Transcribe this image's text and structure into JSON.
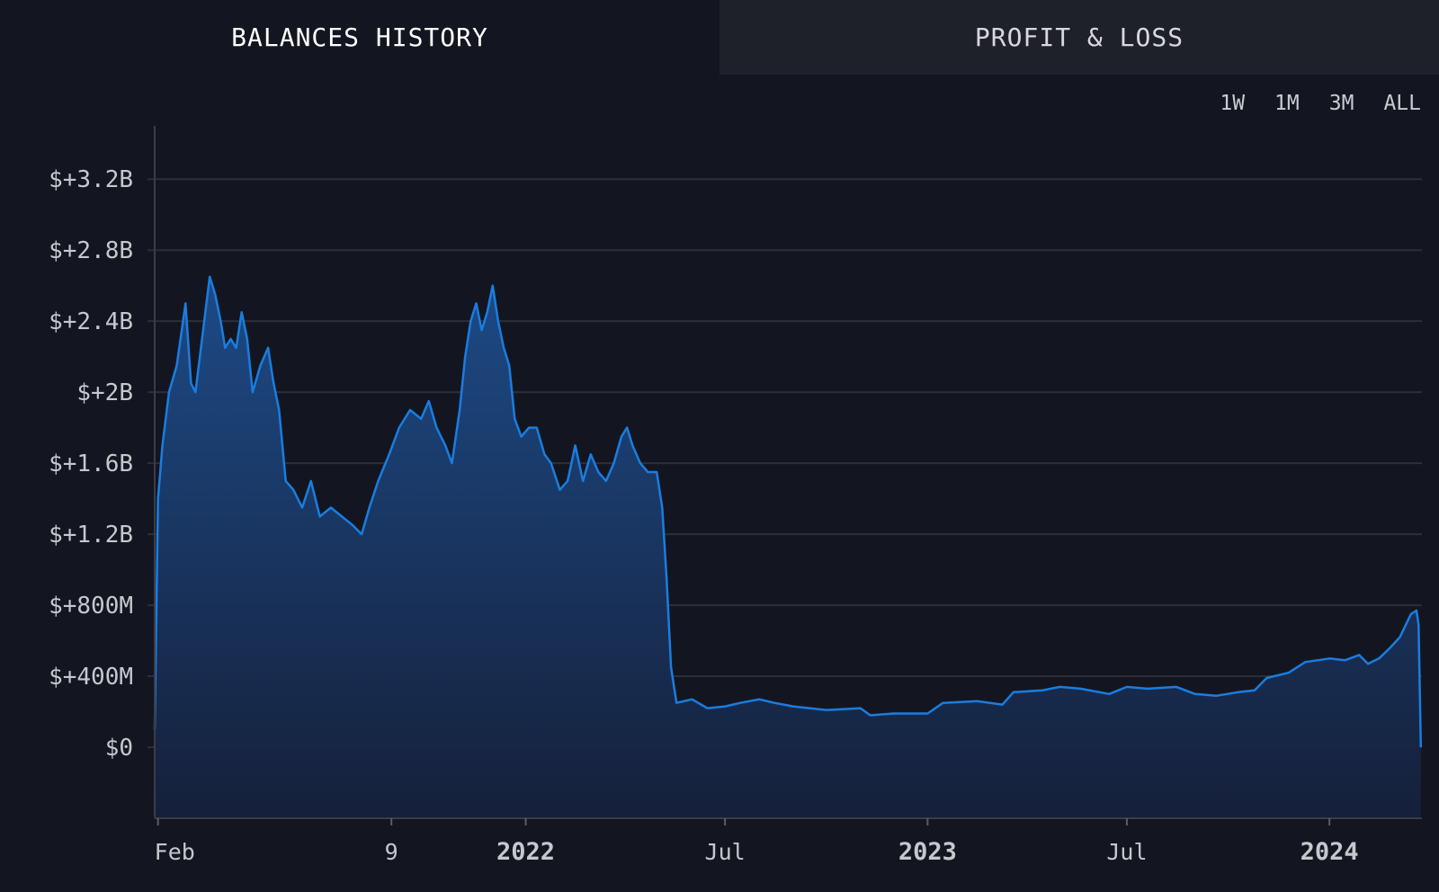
{
  "tabs": [
    {
      "label": "BALANCES HISTORY",
      "active": true
    },
    {
      "label": "PROFIT & LOSS",
      "active": false
    }
  ],
  "ranges": [
    "1W",
    "1M",
    "3M",
    "ALL"
  ],
  "colors": {
    "background": "#131620",
    "line": "#1a7de0",
    "fill_top": "#1d4a86",
    "fill_bottom": "#15203a",
    "grid": "#2c2f38"
  },
  "chart_data": {
    "type": "area",
    "title": "",
    "xlabel": "",
    "ylabel": "",
    "ylim": [
      -400000000,
      3500000000
    ],
    "yticks": [
      {
        "value": 0,
        "label": "$0"
      },
      {
        "value": 400000000,
        "label": "$+400M"
      },
      {
        "value": 800000000,
        "label": "$+800M"
      },
      {
        "value": 1200000000,
        "label": "$+1.2B"
      },
      {
        "value": 1600000000,
        "label": "$+1.6B"
      },
      {
        "value": 2000000000,
        "label": "$+2B"
      },
      {
        "value": 2400000000,
        "label": "$+2.4B"
      },
      {
        "value": 2800000000,
        "label": "$+2.8B"
      },
      {
        "value": 3200000000,
        "label": "$+3.2B"
      }
    ],
    "xlim": [
      "2021-01-29",
      "2024-03-25"
    ],
    "xticks": [
      {
        "date": "2021-02-01",
        "label": "Feb",
        "bold": false
      },
      {
        "date": "2021-09-01",
        "label": "9",
        "bold": false
      },
      {
        "date": "2022-01-01",
        "label": "2022",
        "bold": true
      },
      {
        "date": "2022-07-01",
        "label": "Jul",
        "bold": false
      },
      {
        "date": "2023-01-01",
        "label": "2023",
        "bold": true
      },
      {
        "date": "2023-07-01",
        "label": "Jul",
        "bold": false
      },
      {
        "date": "2024-01-01",
        "label": "2024",
        "bold": true
      }
    ],
    "grid": true,
    "legend": "none",
    "series": [
      {
        "points": [
          [
            "2021-01-29",
            100000000
          ],
          [
            "2021-02-01",
            1400000000
          ],
          [
            "2021-02-05",
            1700000000
          ],
          [
            "2021-02-11",
            2000000000
          ],
          [
            "2021-02-18",
            2150000000
          ],
          [
            "2021-02-26",
            2500000000
          ],
          [
            "2021-03-03",
            2050000000
          ],
          [
            "2021-03-07",
            2000000000
          ],
          [
            "2021-03-11",
            2200000000
          ],
          [
            "2021-03-16",
            2450000000
          ],
          [
            "2021-03-20",
            2650000000
          ],
          [
            "2021-03-25",
            2550000000
          ],
          [
            "2021-03-30",
            2400000000
          ],
          [
            "2021-04-03",
            2250000000
          ],
          [
            "2021-04-08",
            2300000000
          ],
          [
            "2021-04-13",
            2250000000
          ],
          [
            "2021-04-18",
            2450000000
          ],
          [
            "2021-04-23",
            2300000000
          ],
          [
            "2021-04-28",
            2000000000
          ],
          [
            "2021-05-05",
            2150000000
          ],
          [
            "2021-05-12",
            2250000000
          ],
          [
            "2021-05-17",
            2050000000
          ],
          [
            "2021-05-22",
            1900000000
          ],
          [
            "2021-05-28",
            1500000000
          ],
          [
            "2021-06-04",
            1450000000
          ],
          [
            "2021-06-12",
            1350000000
          ],
          [
            "2021-06-20",
            1500000000
          ],
          [
            "2021-06-28",
            1300000000
          ],
          [
            "2021-07-08",
            1350000000
          ],
          [
            "2021-07-18",
            1300000000
          ],
          [
            "2021-07-28",
            1250000000
          ],
          [
            "2021-08-05",
            1200000000
          ],
          [
            "2021-08-12",
            1350000000
          ],
          [
            "2021-08-20",
            1500000000
          ],
          [
            "2021-08-30",
            1650000000
          ],
          [
            "2021-09-08",
            1800000000
          ],
          [
            "2021-09-18",
            1900000000
          ],
          [
            "2021-09-28",
            1850000000
          ],
          [
            "2021-10-05",
            1950000000
          ],
          [
            "2021-10-12",
            1800000000
          ],
          [
            "2021-10-20",
            1700000000
          ],
          [
            "2021-10-26",
            1600000000
          ],
          [
            "2021-11-02",
            1900000000
          ],
          [
            "2021-11-07",
            2200000000
          ],
          [
            "2021-11-12",
            2400000000
          ],
          [
            "2021-11-17",
            2500000000
          ],
          [
            "2021-11-22",
            2350000000
          ],
          [
            "2021-11-27",
            2450000000
          ],
          [
            "2021-12-02",
            2600000000
          ],
          [
            "2021-12-07",
            2400000000
          ],
          [
            "2021-12-12",
            2250000000
          ],
          [
            "2021-12-17",
            2150000000
          ],
          [
            "2021-12-22",
            1850000000
          ],
          [
            "2021-12-28",
            1750000000
          ],
          [
            "2022-01-04",
            1800000000
          ],
          [
            "2022-01-11",
            1800000000
          ],
          [
            "2022-01-18",
            1650000000
          ],
          [
            "2022-01-24",
            1600000000
          ],
          [
            "2022-02-01",
            1450000000
          ],
          [
            "2022-02-08",
            1500000000
          ],
          [
            "2022-02-15",
            1700000000
          ],
          [
            "2022-02-22",
            1500000000
          ],
          [
            "2022-03-01",
            1650000000
          ],
          [
            "2022-03-08",
            1550000000
          ],
          [
            "2022-03-15",
            1500000000
          ],
          [
            "2022-03-22",
            1600000000
          ],
          [
            "2022-03-29",
            1750000000
          ],
          [
            "2022-04-03",
            1800000000
          ],
          [
            "2022-04-08",
            1700000000
          ],
          [
            "2022-04-15",
            1600000000
          ],
          [
            "2022-04-22",
            1550000000
          ],
          [
            "2022-04-30",
            1550000000
          ],
          [
            "2022-05-05",
            1350000000
          ],
          [
            "2022-05-09",
            950000000
          ],
          [
            "2022-05-13",
            450000000
          ],
          [
            "2022-05-18",
            250000000
          ],
          [
            "2022-06-01",
            270000000
          ],
          [
            "2022-06-15",
            220000000
          ],
          [
            "2022-07-01",
            230000000
          ],
          [
            "2022-07-15",
            250000000
          ],
          [
            "2022-08-01",
            270000000
          ],
          [
            "2022-08-15",
            250000000
          ],
          [
            "2022-09-01",
            230000000
          ],
          [
            "2022-10-01",
            210000000
          ],
          [
            "2022-11-01",
            220000000
          ],
          [
            "2022-11-10",
            180000000
          ],
          [
            "2022-12-01",
            190000000
          ],
          [
            "2023-01-01",
            190000000
          ],
          [
            "2023-01-15",
            250000000
          ],
          [
            "2023-02-15",
            260000000
          ],
          [
            "2023-03-10",
            240000000
          ],
          [
            "2023-03-20",
            310000000
          ],
          [
            "2023-04-15",
            320000000
          ],
          [
            "2023-05-01",
            340000000
          ],
          [
            "2023-05-20",
            330000000
          ],
          [
            "2023-06-15",
            300000000
          ],
          [
            "2023-07-01",
            340000000
          ],
          [
            "2023-07-20",
            330000000
          ],
          [
            "2023-08-15",
            340000000
          ],
          [
            "2023-09-01",
            300000000
          ],
          [
            "2023-09-20",
            290000000
          ],
          [
            "2023-10-10",
            310000000
          ],
          [
            "2023-10-25",
            320000000
          ],
          [
            "2023-11-05",
            390000000
          ],
          [
            "2023-11-25",
            420000000
          ],
          [
            "2023-12-10",
            480000000
          ],
          [
            "2024-01-01",
            500000000
          ],
          [
            "2024-01-15",
            490000000
          ],
          [
            "2024-01-28",
            520000000
          ],
          [
            "2024-02-05",
            470000000
          ],
          [
            "2024-02-15",
            500000000
          ],
          [
            "2024-02-25",
            560000000
          ],
          [
            "2024-03-05",
            620000000
          ],
          [
            "2024-03-15",
            750000000
          ],
          [
            "2024-03-20",
            770000000
          ],
          [
            "2024-03-22",
            690000000
          ],
          [
            "2024-03-24",
            0
          ]
        ]
      }
    ]
  }
}
